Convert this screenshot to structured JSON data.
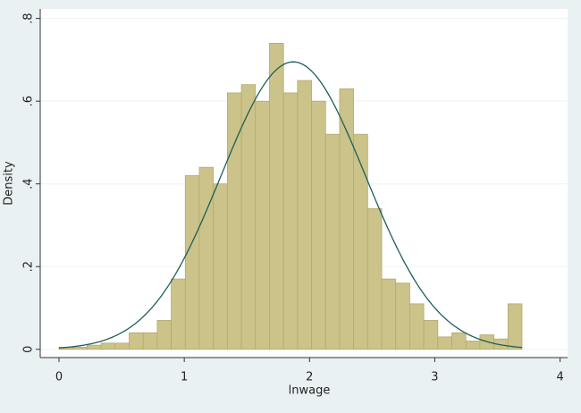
{
  "chart_data": {
    "type": "histogram",
    "x_label": "lnwage",
    "y_label": "Density",
    "bins": [
      0,
      0.112,
      0.224,
      0.336,
      0.448,
      0.56,
      0.672,
      0.784,
      0.896,
      1.008,
      1.12,
      1.232,
      1.344,
      1.456,
      1.568,
      1.68,
      1.792,
      1.904,
      2.016,
      2.128,
      2.24,
      2.352,
      2.464,
      2.576,
      2.688,
      2.8,
      2.912,
      3.024,
      3.136,
      3.248,
      3.36,
      3.472,
      3.584,
      3.696
    ],
    "values": [
      0.005,
      0.005,
      0.01,
      0.015,
      0.015,
      0.04,
      0.04,
      0.07,
      0.17,
      0.42,
      0.44,
      0.4,
      0.62,
      0.64,
      0.6,
      0.74,
      0.62,
      0.65,
      0.6,
      0.52,
      0.63,
      0.52,
      0.34,
      0.17,
      0.16,
      0.11,
      0.07,
      0.03,
      0.04,
      0.02,
      0.035,
      0.025,
      0.11
    ],
    "color": "#cbc389",
    "edge_color": "#b3ab6d",
    "normal_curve": {
      "mean": 1.87,
      "sd": 0.574,
      "color": "#1d5f5b"
    },
    "xlim": [
      -0.15,
      4.06
    ],
    "ylim": [
      -0.02,
      0.823
    ],
    "xticks": [
      0,
      1,
      2,
      3,
      4
    ],
    "yticks": [
      0,
      {
        "value": 0.2,
        "label": ".2"
      },
      {
        "value": 0.4,
        "label": ".4"
      },
      {
        "value": 0.6,
        "label": ".6"
      },
      {
        "value": 0.8,
        "label": ".8"
      }
    ],
    "grid": true
  }
}
